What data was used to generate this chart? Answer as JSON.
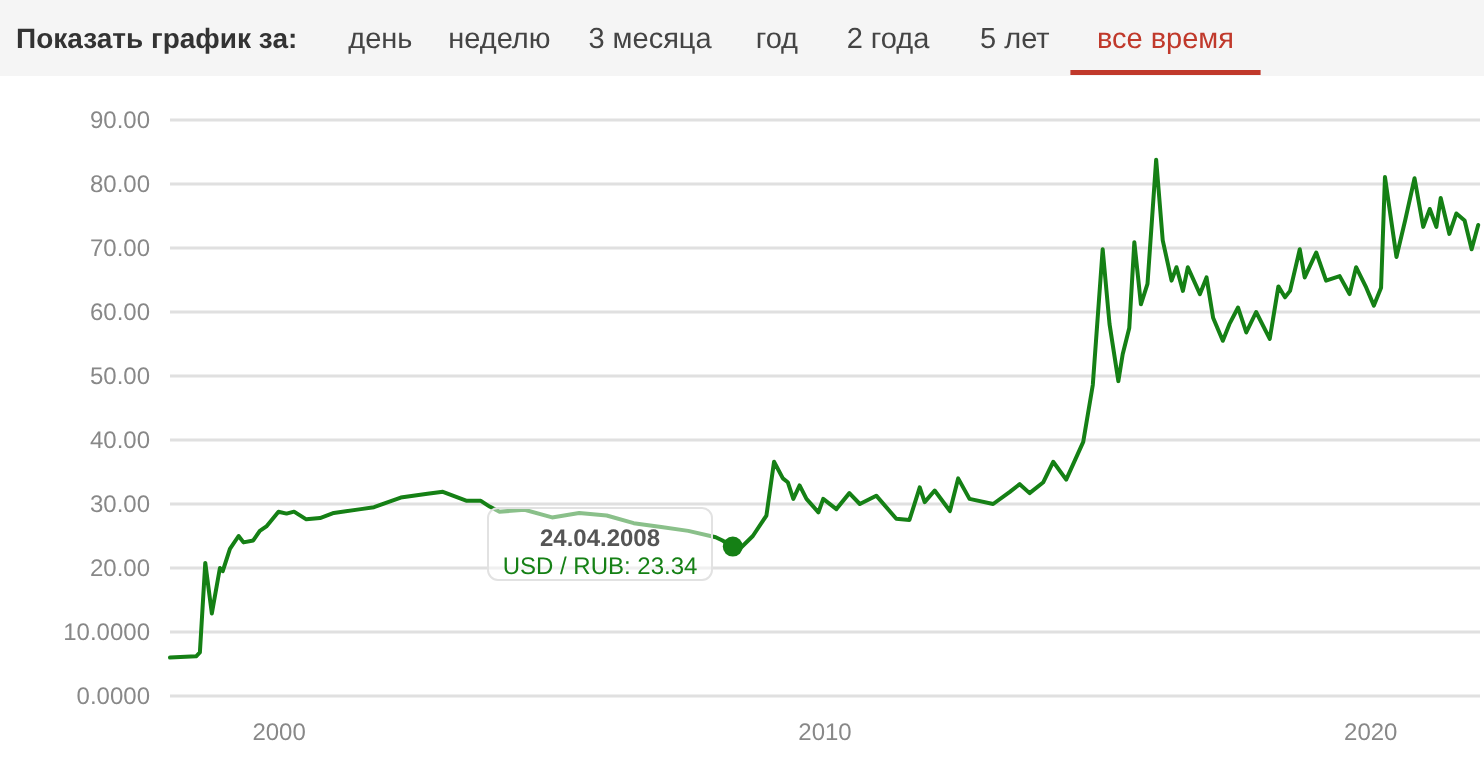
{
  "chart_data": {
    "type": "line",
    "title": "Показать график за:",
    "annotations": [
      "день",
      "неделю",
      "3 месяца",
      "год",
      "2 года",
      "5 лет",
      "все время",
      "24.04.2008",
      "USD / RUB: 23.34"
    ],
    "xlim": [
      "1998-01-01",
      "2022-01-01"
    ],
    "xticks": [
      "2000",
      "2010",
      "2020"
    ],
    "ylim": [
      0,
      90
    ],
    "yticks": [
      {
        "value": 0,
        "label": "0.0000"
      },
      {
        "value": 10,
        "label": "10.0000"
      },
      {
        "value": 20,
        "label": "20.00"
      },
      {
        "value": 30,
        "label": "30.00"
      },
      {
        "value": 40,
        "label": "40.00"
      },
      {
        "value": 50,
        "label": "50.00"
      },
      {
        "value": 60,
        "label": "60.00"
      },
      {
        "value": 70,
        "label": "70.00"
      },
      {
        "value": 80,
        "label": "80.00"
      },
      {
        "value": 90,
        "label": "90.00"
      }
    ],
    "grid": "y",
    "marker": "none",
    "line_style": "solid",
    "series": [
      {
        "color": "#158015",
        "x": [
          "1998-01-01",
          "1998-06-25",
          "1998-07-20",
          "1998-08-25",
          "1998-10-08",
          "1998-12-01",
          "1998-12-20",
          "1999-02-06",
          "1999-04-05",
          "1999-05-08",
          "1999-07-12",
          "1999-08-25",
          "1999-10-08",
          "1999-12-28",
          "2000-02-20",
          "2000-04-10",
          "2000-07-01",
          "2000-10-01",
          "2001-01-01",
          "2001-07-01",
          "2001-09-27",
          "2002-03-25",
          "2002-09-20",
          "2003-01-01",
          "2003-06-10",
          "2003-09-12",
          "2003-11-10",
          "2004-01-15",
          "2004-07-01",
          "2005-01-01",
          "2005-07-01",
          "2006-01-01",
          "2006-07-01",
          "2007-01-01",
          "2007-07-01",
          "2008-01-01",
          "2008-02-15",
          "2008-04-24",
          "2008-06-10",
          "2008-09-05",
          "2008-12-05",
          "2009-01-25",
          "2009-03-25",
          "2009-04-27",
          "2009-06-03",
          "2009-07-15",
          "2009-08-30",
          "2009-11-18",
          "2009-12-20",
          "2010-03-18",
          "2010-06-13",
          "2010-08-22",
          "2010-12-10",
          "2011-04-23",
          "2011-07-20",
          "2011-09-27",
          "2011-10-30",
          "2012-01-05",
          "2012-04-16",
          "2012-06-10",
          "2012-08-25",
          "2013-01-30",
          "2013-05-22",
          "2013-07-27",
          "2013-10-01",
          "2014-01-01",
          "2014-03-08",
          "2014-06-03",
          "2014-09-25",
          "2014-11-28",
          "2015-02-02",
          "2015-03-20",
          "2015-05-18",
          "2015-06-16",
          "2015-07-30",
          "2015-09-02",
          "2015-10-16",
          "2015-11-29",
          "2016-01-26",
          "2016-03-10",
          "2016-05-08",
          "2016-06-10",
          "2016-07-23",
          "2016-08-25",
          "2016-11-14",
          "2016-12-28",
          "2017-02-10",
          "2017-04-16",
          "2017-05-30",
          "2017-07-27",
          "2017-09-20",
          "2017-11-25",
          "2018-02-24",
          "2018-04-23",
          "2018-06-06",
          "2018-07-10",
          "2018-09-13",
          "2018-10-16",
          "2019-01-01",
          "2019-03-08",
          "2019-06-07",
          "2019-08-12",
          "2019-09-25",
          "2019-12-02",
          "2020-01-22",
          "2020-03-10",
          "2020-04-05",
          "2020-06-21",
          "2020-08-18",
          "2020-10-20",
          "2020-12-17",
          "2021-01-30",
          "2021-03-15",
          "2021-04-13",
          "2021-06-10",
          "2021-07-27",
          "2021-09-20",
          "2021-11-06",
          "2021-12-20"
        ],
        "values": [
          6.0,
          6.2,
          6.8,
          20.8,
          12.9,
          20.0,
          19.5,
          23.0,
          25.0,
          24.0,
          24.3,
          25.8,
          26.5,
          28.8,
          28.5,
          28.8,
          27.6,
          27.8,
          28.6,
          29.2,
          29.5,
          31.0,
          31.6,
          31.9,
          30.5,
          30.5,
          29.6,
          28.8,
          29.1,
          27.9,
          28.6,
          28.2,
          27.0,
          26.4,
          25.8,
          24.8,
          24.3,
          23.34,
          23.0,
          25.0,
          28.2,
          36.6,
          34.0,
          33.4,
          30.8,
          32.9,
          30.8,
          28.7,
          30.8,
          29.2,
          31.7,
          30.0,
          31.3,
          27.7,
          27.5,
          32.6,
          30.3,
          32.1,
          28.9,
          34.0,
          30.8,
          30.0,
          31.9,
          33.1,
          31.7,
          33.4,
          36.6,
          33.8,
          39.7,
          48.6,
          69.8,
          58.1,
          49.2,
          53.4,
          57.5,
          70.9,
          61.2,
          64.4,
          83.8,
          71.2,
          64.9,
          67.0,
          63.3,
          67.0,
          62.8,
          65.4,
          59.1,
          55.5,
          58.1,
          60.7,
          56.8,
          60.0,
          55.8,
          64.0,
          62.3,
          63.3,
          69.8,
          65.4,
          69.3,
          64.9,
          65.6,
          62.8,
          67.0,
          63.8,
          61.0,
          63.8,
          81.1,
          68.6,
          74.3,
          80.9,
          73.3,
          76.1,
          73.3,
          77.8,
          72.2,
          75.4,
          74.3,
          69.8,
          73.6
        ]
      },
      {
        "type": "scatter",
        "marker": "circle",
        "color": "#158015",
        "x": [
          "2008-04-24"
        ],
        "values": [
          23.34
        ]
      }
    ]
  }
}
